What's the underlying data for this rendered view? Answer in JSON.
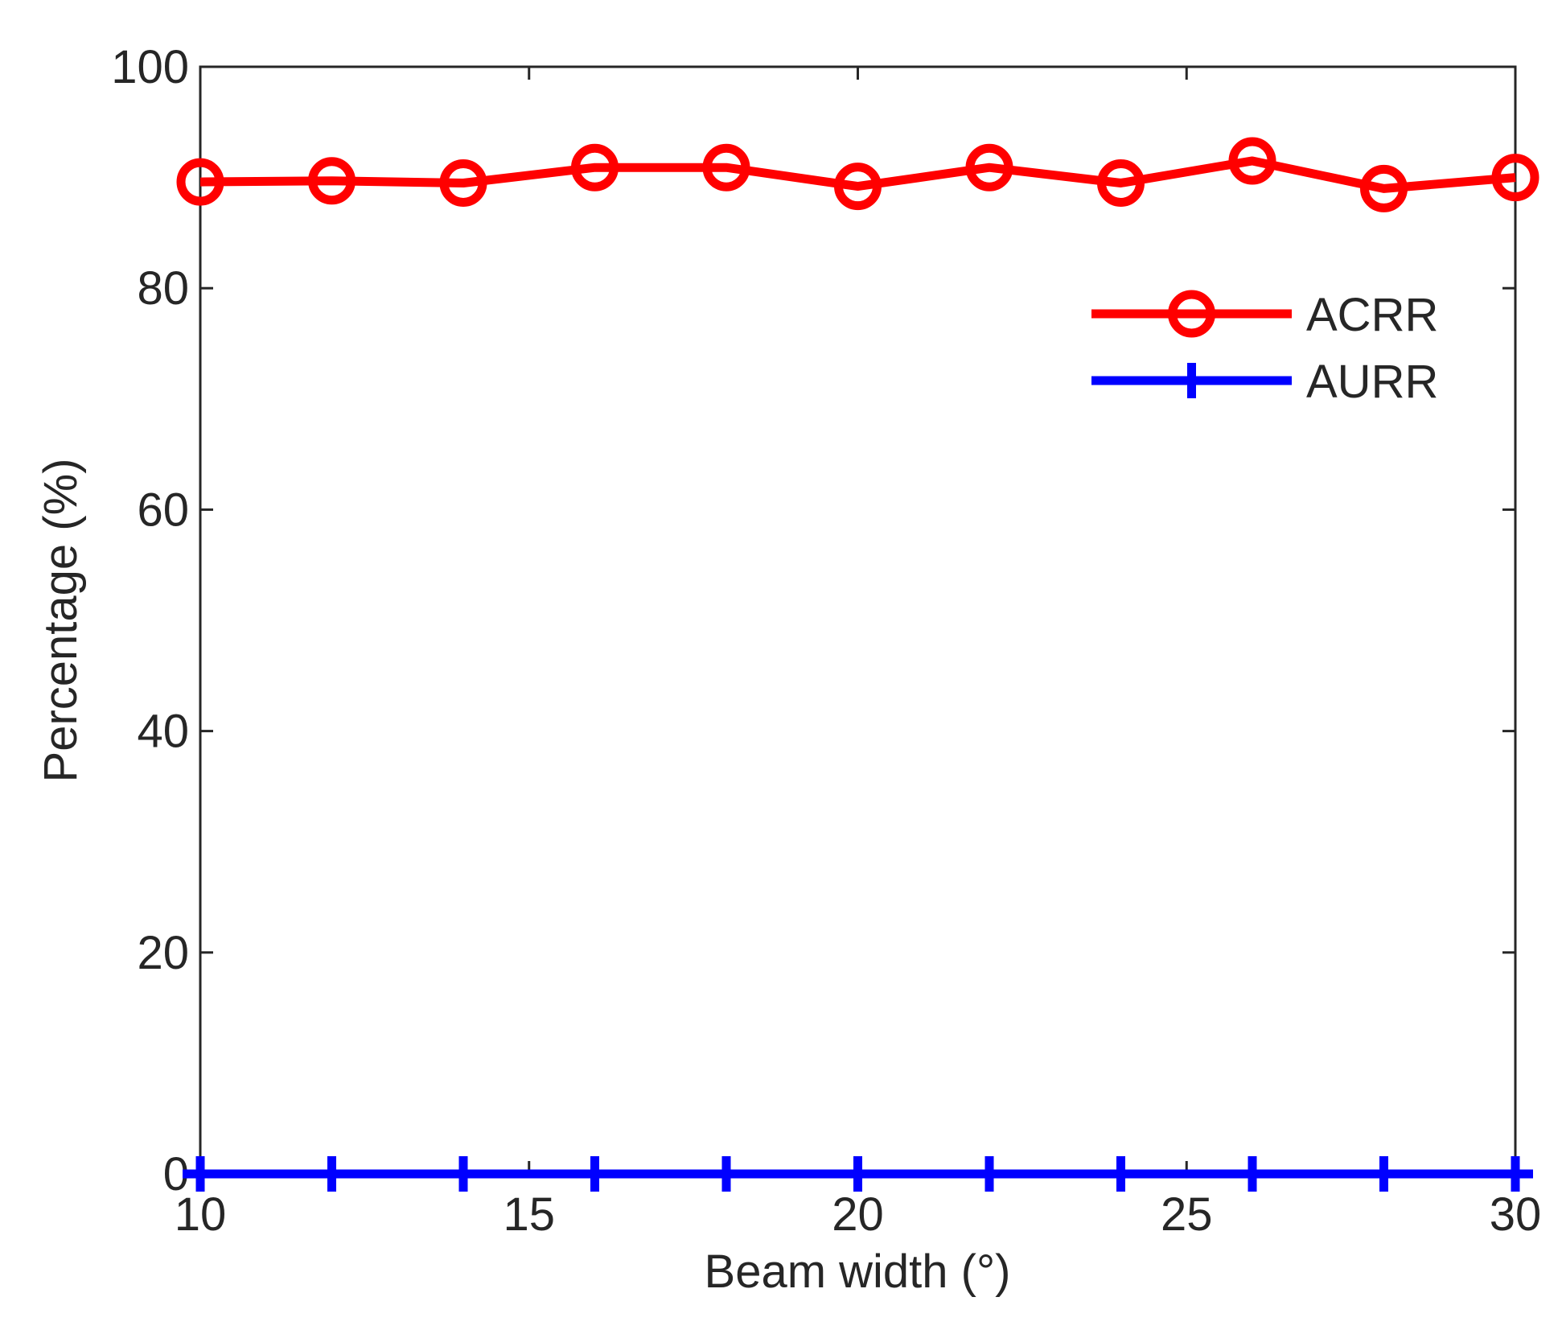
{
  "chart_data": {
    "type": "line",
    "xlabel": "Beam width (°)",
    "ylabel": "Percentage (%)",
    "x": [
      10,
      12,
      14,
      16,
      18,
      20,
      22,
      24,
      26,
      28,
      30
    ],
    "series": [
      {
        "name": "ACRR",
        "color": "#ff0000",
        "marker": "circle",
        "values": [
          89.6,
          89.7,
          89.5,
          90.9,
          90.9,
          89.2,
          90.9,
          89.5,
          91.5,
          89.0,
          90.0
        ]
      },
      {
        "name": "AURR",
        "color": "#0000ff",
        "marker": "plus",
        "values": [
          0,
          0,
          0,
          0,
          0,
          0,
          0,
          0,
          0,
          0,
          0
        ]
      }
    ],
    "xlim": [
      10,
      30
    ],
    "xticks": [
      10,
      15,
      20,
      25,
      30
    ],
    "ylim": [
      0,
      100
    ],
    "yticks": [
      0,
      20,
      40,
      60,
      80,
      100
    ],
    "grid": false,
    "legend": "upper right"
  }
}
